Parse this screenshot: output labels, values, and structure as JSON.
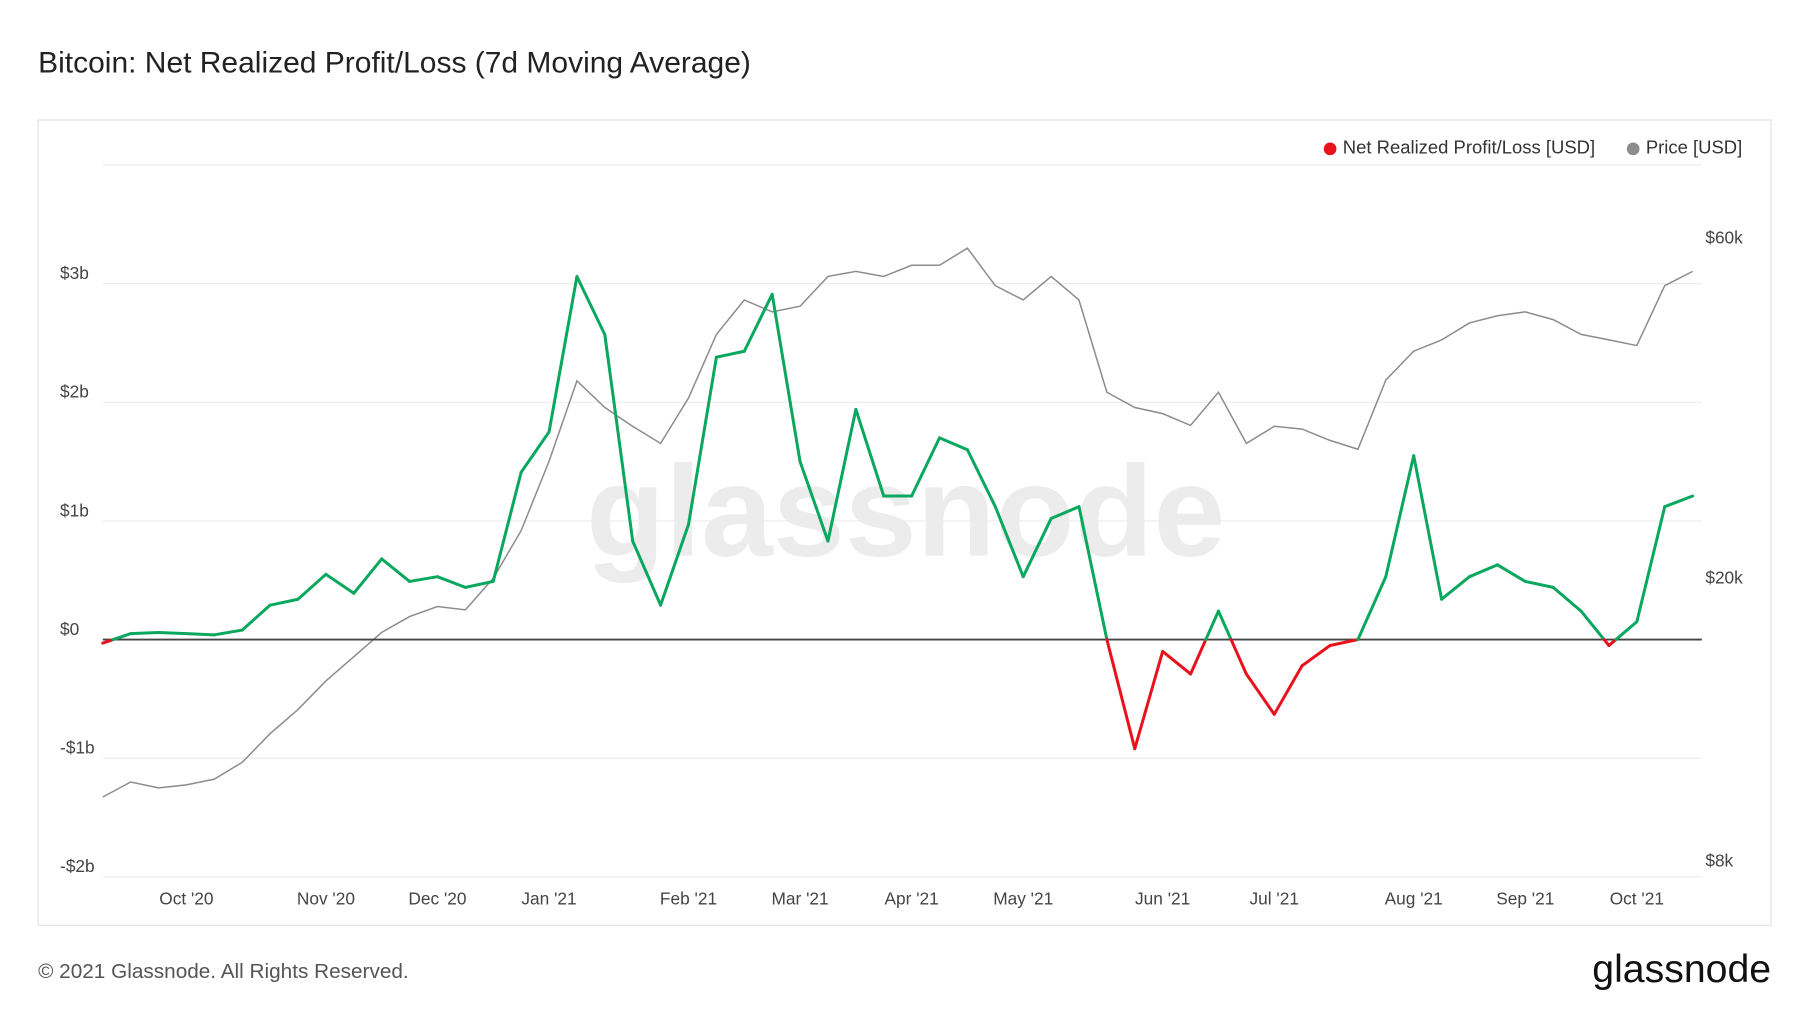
{
  "chart_data": {
    "type": "line",
    "title": "Bitcoin: Net Realized Profit/Loss (7d Moving Average)",
    "categories": [
      null,
      null,
      null,
      "Oct '20",
      null,
      null,
      null,
      null,
      "Nov '20",
      null,
      null,
      null,
      "Dec '20",
      null,
      null,
      null,
      "Jan '21",
      null,
      null,
      null,
      null,
      "Feb '21",
      null,
      null,
      null,
      "Mar '21",
      null,
      null,
      null,
      "Apr '21",
      null,
      null,
      null,
      "May '21",
      null,
      null,
      null,
      null,
      "Jun '21",
      null,
      null,
      null,
      "Jul '21",
      null,
      null,
      null,
      null,
      "Aug '21",
      null,
      null,
      null,
      "Sep '21",
      null,
      null,
      null,
      "Oct '21",
      null,
      null
    ],
    "series": [
      {
        "name": "Net Realized Profit/Loss [USD]",
        "color": "#e8121c",
        "positive_color": "#0aa85e",
        "values": [
          -0.03,
          0.05,
          0.06,
          0.05,
          0.04,
          0.08,
          0.29,
          0.34,
          0.55,
          0.39,
          0.68,
          0.49,
          0.53,
          0.44,
          0.49,
          1.41,
          1.75,
          3.06,
          2.57,
          0.83,
          0.29,
          0.97,
          2.38,
          2.43,
          2.91,
          1.5,
          0.83,
          1.94,
          1.21,
          1.21,
          1.7,
          1.6,
          1.12,
          0.53,
          1.02,
          1.12,
          0.0,
          -0.92,
          -0.1,
          -0.29,
          0.24,
          -0.29,
          -0.63,
          -0.22,
          -0.05,
          0.0,
          0.53,
          1.55,
          0.34,
          0.53,
          0.63,
          0.49,
          0.44,
          0.24,
          -0.05,
          0.15,
          1.12,
          1.21
        ]
      },
      {
        "name": "Price [USD]",
        "color": "#8c8c8c",
        "axis": "y2",
        "values": [
          10100,
          10600,
          10400,
          10500,
          10700,
          11300,
          12400,
          13400,
          14700,
          15900,
          17200,
          18100,
          18700,
          18500,
          20500,
          23900,
          29900,
          38800,
          35600,
          33500,
          31700,
          36700,
          45100,
          50400,
          48500,
          49400,
          54400,
          55300,
          54400,
          56400,
          56400,
          59600,
          52800,
          50400,
          54400,
          50400,
          37400,
          35600,
          34900,
          33600,
          37400,
          31700,
          33500,
          33200,
          32000,
          31100,
          38900,
          42700,
          44300,
          46800,
          47900,
          48500,
          47300,
          45100,
          44300,
          43500,
          52800,
          55300
        ]
      }
    ],
    "ylim": [
      -2,
      4
    ],
    "yticks": [
      {
        "value": -2,
        "label": "-$2b"
      },
      {
        "value": -1,
        "label": "-$1b"
      },
      {
        "value": 0,
        "label": "$0"
      },
      {
        "value": 1,
        "label": "$1b"
      },
      {
        "value": 2,
        "label": "$2b"
      },
      {
        "value": 3,
        "label": "$3b"
      }
    ],
    "y2lim": [
      7800,
      78000
    ],
    "y2scale": "log",
    "y2ticks": [
      {
        "value": 8000,
        "label": "$8k"
      },
      {
        "value": 20000,
        "label": "$20k"
      },
      {
        "value": 60000,
        "label": "$60k"
      }
    ],
    "grid": true,
    "legend": "top-right",
    "watermark": "glassnode",
    "footer": "© 2021 Glassnode. All Rights Reserved.",
    "logo": "glassnode"
  }
}
